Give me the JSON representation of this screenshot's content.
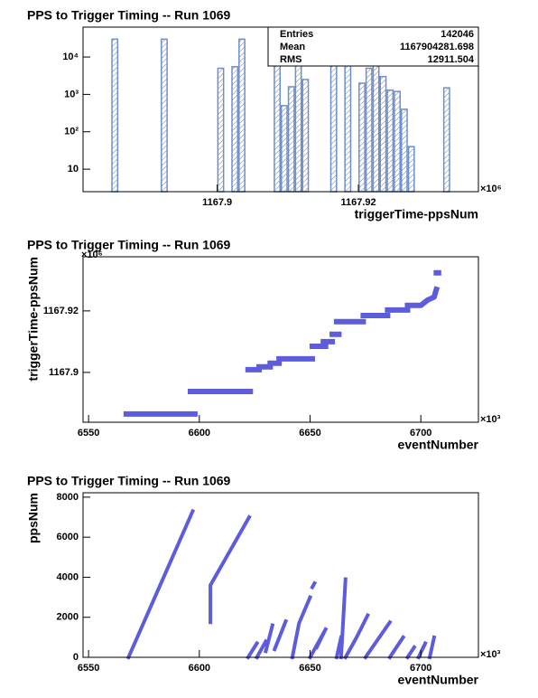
{
  "chart_data": [
    {
      "type": "histogram",
      "title": "PPS to Trigger Timing -- Run 1069",
      "x_label": "triggerTime-ppsNum",
      "x_exponent": "×10⁶",
      "color": "#6b8fd0",
      "log_y": true,
      "bins": [
        1167.881,
        1167.882,
        1167.883,
        1167.884,
        1167.885,
        1167.886,
        1167.887,
        1167.888,
        1167.889,
        1167.89,
        1167.891,
        1167.892,
        1167.893,
        1167.894,
        1167.895,
        1167.896,
        1167.897,
        1167.898,
        1167.899,
        1167.9,
        1167.901,
        1167.902,
        1167.903,
        1167.904,
        1167.905,
        1167.906,
        1167.907,
        1167.908,
        1167.909,
        1167.91,
        1167.911,
        1167.912,
        1167.913,
        1167.914,
        1167.915,
        1167.916,
        1167.917,
        1167.918,
        1167.919,
        1167.92,
        1167.921,
        1167.922,
        1167.923,
        1167.924,
        1167.925,
        1167.926,
        1167.927,
        1167.928,
        1167.929,
        1167.93,
        1167.931,
        1167.932,
        1167.933,
        1167.934,
        1167.935,
        1167.936,
        1167.937
      ],
      "counts": [
        0,
        0,
        0,
        0,
        30000,
        0,
        0,
        0,
        0,
        0,
        0,
        30000,
        0,
        0,
        0,
        0,
        0,
        0,
        0,
        5000,
        0,
        5500,
        30000,
        0,
        0,
        0,
        0,
        30000,
        500,
        1600,
        8000,
        2500,
        0,
        0,
        0,
        12000,
        0,
        12000,
        0,
        2000,
        5000,
        12000,
        3000,
        1300,
        1200,
        400,
        40,
        0,
        0,
        0,
        0,
        1500,
        0,
        0,
        0,
        0
      ],
      "xlim": [
        1167.881,
        1167.937
      ],
      "xticks": [
        1167.9,
        1167.92
      ],
      "ylim": [
        2.5,
        63000
      ],
      "yticks": [
        10,
        {
          "value": 100,
          "label": "10²"
        },
        {
          "value": 1000,
          "label": "10³"
        },
        {
          "value": 10000,
          "label": "10⁴"
        }
      ],
      "stats": [
        {
          "label": "Entries",
          "value": 142046
        },
        {
          "label": "Mean",
          "value": 1167904281.698
        },
        {
          "label": "RMS",
          "value": 12911.504
        }
      ]
    },
    {
      "type": "line",
      "title": "PPS to Trigger Timing -- Run 1069",
      "x_label": "eventNumber",
      "x_exponent": "×10³",
      "y_label": "triggerTime-ppsNum",
      "y_exponent": "×10⁶",
      "color": "#5c5cdc",
      "stroke": 6,
      "x": [
        6567,
        6598,
        null,
        6596,
        6623,
        null,
        6622,
        6627,
        null,
        6627,
        6632,
        null,
        6632,
        6636,
        null,
        6636,
        6651,
        null,
        6651,
        6657,
        null,
        6656,
        6660,
        null,
        6660,
        6663,
        null,
        6662,
        6674,
        null,
        6674,
        6685,
        null,
        6685,
        6694,
        null,
        6694,
        6700,
        6703,
        6706,
        6707,
        null,
        6707,
        6708
      ],
      "values": [
        1167.8865,
        1167.8865,
        null,
        1167.8938,
        1167.8938,
        null,
        1167.9009,
        1167.9009,
        null,
        1167.9018,
        1167.9018,
        null,
        1167.903,
        1167.903,
        null,
        1167.9044,
        1167.9044,
        null,
        1167.9085,
        1167.9085,
        null,
        1167.91,
        1167.91,
        null,
        1167.9124,
        1167.9124,
        null,
        1167.9165,
        1167.9165,
        null,
        1167.9185,
        1167.9185,
        null,
        1167.9203,
        1167.9203,
        null,
        1167.9218,
        1167.9218,
        1167.9235,
        1167.9245,
        1167.927,
        null,
        1167.9324,
        1167.9324
      ],
      "xlim": [
        6547.5,
        6726
      ],
      "xticks": [
        6550,
        6600,
        6650,
        6700
      ],
      "ylim": [
        1167.8838,
        1167.9376
      ],
      "yticks": [
        1167.9,
        1167.92
      ]
    },
    {
      "type": "line",
      "title": "PPS to Trigger Timing -- Run 1069",
      "x_label": "eventNumber",
      "x_exponent": "×10³",
      "y_label": "ppsNum",
      "color": "#5c5cdc",
      "stroke": 4,
      "x": [
        6568,
        6597,
        null,
        6605,
        6605,
        6622.5,
        null,
        6622,
        6626,
        null,
        6626,
        6630,
        null,
        6630,
        6633,
        null,
        6634,
        6639,
        null,
        6642,
        6645,
        6650,
        null,
        6650,
        6656,
        null,
        6651,
        6652,
        null,
        6653,
        6657,
        null,
        6662,
        6664,
        null,
        6664,
        6666,
        null,
        6666,
        6671,
        6676,
        null,
        6675,
        6686,
        null,
        6686,
        6692,
        null,
        6694,
        6697,
        null,
        6699,
        6702,
        null,
        6704,
        6706
      ],
      "values": [
        0,
        7300,
        null,
        1750,
        3600,
        7000,
        null,
        0,
        700,
        null,
        0,
        800,
        null,
        300,
        1600,
        null,
        400,
        1800,
        null,
        0,
        1700,
        3000,
        null,
        0,
        1200,
        null,
        3500,
        3700,
        null,
        500,
        1400,
        null,
        0,
        1000,
        null,
        0,
        3900,
        null,
        0,
        1000,
        2100,
        null,
        0,
        1750,
        null,
        0,
        1000,
        null,
        0,
        500,
        null,
        0,
        700,
        null,
        0,
        1000
      ],
      "xlim": [
        6547.5,
        6726
      ],
      "xticks": [
        6550,
        6600,
        6650,
        6700
      ],
      "ylim": [
        0,
        8220
      ],
      "yticks": [
        0,
        2000,
        4000,
        6000,
        8000
      ]
    }
  ]
}
